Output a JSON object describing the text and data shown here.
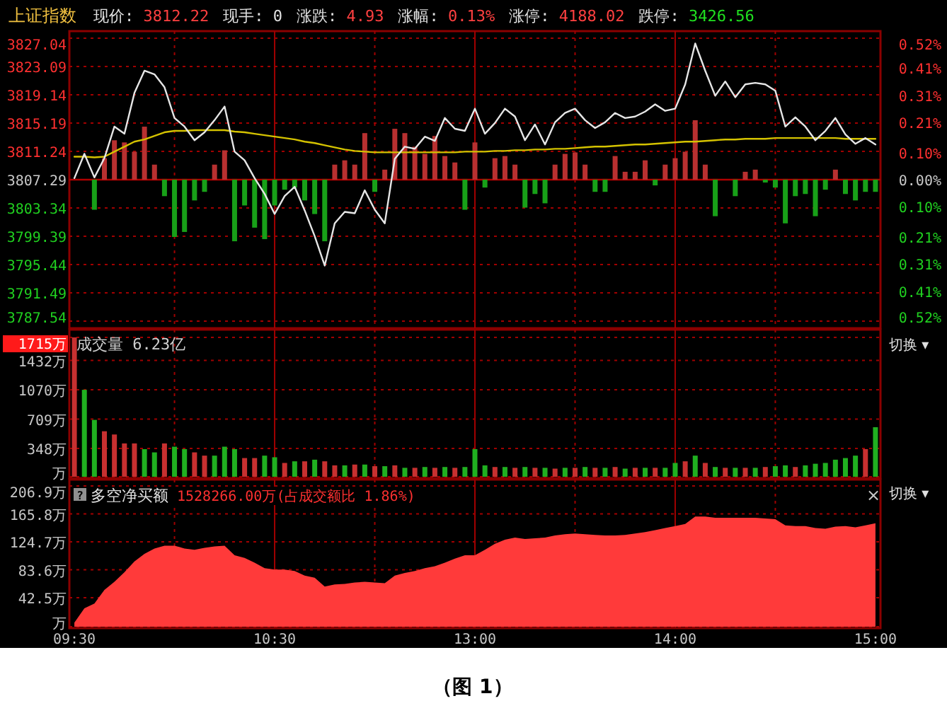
{
  "chart_data": [
    {
      "type": "line",
      "title": "上证指数",
      "annotations": [
        "现价: 3812.22",
        "现手: 0",
        "涨跌: 4.93",
        "涨幅: 0.13%",
        "涨停: 4188.02",
        "跌停: 3426.56"
      ],
      "categories": [
        null,
        null,
        null,
        null,
        null,
        null,
        null,
        null,
        null,
        null,
        null,
        null,
        null,
        null,
        null,
        null,
        null,
        null,
        null,
        null,
        null,
        null,
        null,
        null,
        null,
        null,
        null,
        null,
        null,
        null,
        null,
        null,
        null,
        null,
        null,
        null,
        null,
        null,
        null,
        null,
        null,
        null,
        null,
        null,
        null,
        null,
        null,
        null,
        null,
        null,
        null,
        null,
        null,
        null,
        null,
        null,
        null,
        null,
        null,
        null,
        null,
        null,
        null,
        null,
        null,
        null,
        null,
        null,
        null,
        null,
        null,
        null,
        null,
        null,
        null,
        null,
        null,
        null,
        null,
        null,
        null
      ],
      "ylim": [
        3787.54,
        3827.04
      ],
      "yticks": [
        3787.54,
        3791.49,
        3795.44,
        3799.39,
        3803.34,
        3807.29,
        3811.24,
        3815.19,
        3819.14,
        3823.09,
        3827.04
      ],
      "y2lim": [
        -0.52,
        0.52
      ],
      "y2ticks": [
        {
          "value": -0.52,
          "label": "0.52%"
        },
        {
          "value": -0.41,
          "label": "0.41%"
        },
        {
          "value": -0.31,
          "label": "0.31%"
        },
        {
          "value": -0.21,
          "label": "0.21%"
        },
        {
          "value": -0.1,
          "label": "0.10%"
        },
        {
          "value": 0,
          "label": "0.00%"
        },
        {
          "value": 0.1,
          "label": "0.10%"
        },
        {
          "value": 0.21,
          "label": "0.21%"
        },
        {
          "value": 0.31,
          "label": "0.31%"
        },
        {
          "value": 0.41,
          "label": "0.41%"
        },
        {
          "value": 0.52,
          "label": "0.52%"
        }
      ],
      "grid": true,
      "tick_labels": [
        "y",
        "y2"
      ],
      "ref_lines": [
        {
          "axis": "y",
          "value": 3807.29,
          "color": "#b00000"
        }
      ],
      "series": [
        {
          "type": "bar",
          "color": "#b83030",
          "base": [
            null,
            null,
            null,
            3807.29,
            3807.29,
            3807.29,
            3807.29,
            3807.29,
            3807.29,
            null,
            null,
            null,
            null,
            null,
            3807.29,
            3807.29,
            null,
            null,
            null,
            null,
            null,
            null,
            null,
            null,
            null,
            null,
            3807.29,
            3807.29,
            3807.29,
            3807.29,
            null,
            3807.29,
            3807.29,
            3807.29,
            3807.29,
            3807.29,
            3807.29,
            3807.29,
            3807.29,
            null,
            3807.29,
            null,
            3807.29,
            3807.29,
            3807.29,
            null,
            null,
            null,
            3807.29,
            3807.29,
            3807.29,
            3807.29,
            null,
            null,
            3807.29,
            3807.29,
            3807.29,
            3807.29,
            null,
            3807.29,
            3807.29,
            3807.29,
            3807.29,
            3807.29,
            null,
            null,
            null,
            3807.29,
            3807.29,
            null,
            null,
            null,
            null,
            null,
            null,
            null,
            3807.29,
            null,
            null,
            null,
            null
          ],
          "values": [
            null,
            null,
            null,
            3.0,
            5.5,
            5.2,
            3.9,
            7.4,
            2.1,
            null,
            null,
            null,
            null,
            null,
            2.1,
            4.1,
            null,
            null,
            null,
            null,
            null,
            null,
            null,
            null,
            null,
            null,
            2.1,
            2.7,
            2.1,
            6.5,
            null,
            1.4,
            7.1,
            6.5,
            4.6,
            3.6,
            6.1,
            3.3,
            2.4,
            null,
            5.2,
            null,
            3.0,
            3.3,
            2.1,
            null,
            null,
            null,
            2.1,
            3.6,
            3.8,
            2.1,
            null,
            null,
            3.3,
            1.1,
            1.1,
            2.7,
            null,
            2.1,
            3.0,
            3.9,
            8.3,
            2.1,
            null,
            null,
            null,
            1.1,
            1.4,
            null,
            null,
            null,
            null,
            null,
            null,
            null,
            1.4,
            null,
            null,
            null,
            null
          ]
        },
        {
          "type": "bar",
          "color": "#18a018",
          "base": [
            null,
            null,
            3807.29,
            null,
            null,
            null,
            null,
            null,
            null,
            3807.29,
            3807.29,
            3807.29,
            3807.29,
            3807.29,
            null,
            null,
            3807.29,
            3807.29,
            3807.29,
            3807.29,
            3807.29,
            3807.29,
            3807.29,
            3807.29,
            3807.29,
            3807.29,
            null,
            null,
            null,
            null,
            3807.29,
            null,
            null,
            null,
            null,
            null,
            null,
            null,
            null,
            3807.29,
            null,
            3807.29,
            null,
            null,
            null,
            3807.29,
            3807.29,
            3807.29,
            null,
            null,
            null,
            null,
            3807.29,
            3807.29,
            null,
            null,
            null,
            null,
            3807.29,
            null,
            null,
            null,
            null,
            null,
            3807.29,
            null,
            3807.29,
            null,
            null,
            3807.29,
            3807.29,
            3807.29,
            3807.29,
            3807.29,
            3807.29,
            3807.29,
            null,
            3807.29,
            3807.29,
            3807.29,
            3807.29
          ],
          "values": [
            null,
            null,
            -4.2,
            null,
            null,
            null,
            null,
            null,
            null,
            -2.3,
            -8.0,
            -7.3,
            -2.9,
            -1.7,
            null,
            null,
            -8.6,
            -3.6,
            -6.7,
            -8.3,
            -3.6,
            -1.4,
            -1.1,
            -2.9,
            -4.8,
            -8.6,
            null,
            null,
            null,
            null,
            -1.7,
            null,
            null,
            null,
            null,
            null,
            null,
            null,
            null,
            -4.2,
            null,
            -1.1,
            null,
            null,
            null,
            -3.9,
            -2.0,
            -3.3,
            null,
            null,
            null,
            null,
            -1.7,
            -1.7,
            null,
            null,
            null,
            null,
            -0.8,
            null,
            null,
            null,
            null,
            null,
            -5.1,
            null,
            -2.3,
            null,
            null,
            -0.4,
            -1.1,
            -6.1,
            -2.3,
            -2.0,
            -5.1,
            -1.4,
            null,
            -2.0,
            -2.9,
            -1.7,
            -1.7
          ]
        },
        {
          "color": "#d4c200",
          "values": [
            3810.5,
            3810.5,
            3810.4,
            3810.5,
            3811.2,
            3811.9,
            3812.6,
            3812.9,
            3813.4,
            3813.9,
            3814.1,
            3814.1,
            3814.2,
            3814.2,
            3814.2,
            3814.2,
            3814.0,
            3813.9,
            3813.7,
            3813.5,
            3813.3,
            3813.1,
            3812.9,
            3812.6,
            3812.4,
            3812.1,
            3811.8,
            3811.5,
            3811.3,
            3811.2,
            3811.1,
            3811.1,
            3811.1,
            3811.1,
            3811.1,
            3811.1,
            3811.1,
            3811.1,
            3811.1,
            3811.2,
            3811.2,
            3811.2,
            3811.3,
            3811.3,
            3811.4,
            3811.4,
            3811.5,
            3811.5,
            3811.6,
            3811.6,
            3811.7,
            3811.8,
            3811.9,
            3811.9,
            3812.0,
            3812.1,
            3812.2,
            3812.2,
            3812.3,
            3812.4,
            3812.5,
            3812.6,
            3812.6,
            3812.7,
            3812.8,
            3812.9,
            3812.9,
            3813.0,
            3813.0,
            3813.0,
            3813.1,
            3813.1,
            3813.1,
            3813.1,
            3813.1,
            3813.1,
            3813.1,
            3813.0,
            3813.0,
            3813.0,
            3813.0
          ]
        },
        {
          "color": "#e6e6e6",
          "values": [
            3807.5,
            3810.9,
            3807.6,
            3810.3,
            3814.7,
            3813.7,
            3819.4,
            3822.5,
            3822.0,
            3820.2,
            3815.9,
            3814.7,
            3812.8,
            3813.9,
            3815.6,
            3817.5,
            3811.2,
            3810.0,
            3807.5,
            3805.3,
            3802.5,
            3805.0,
            3806.3,
            3803.0,
            3799.4,
            3795.3,
            3801.2,
            3802.8,
            3802.6,
            3805.8,
            3803.1,
            3801.2,
            3810.2,
            3811.9,
            3811.6,
            3813.3,
            3812.7,
            3815.9,
            3814.4,
            3814.1,
            3817.2,
            3813.7,
            3815.2,
            3817.2,
            3816.1,
            3812.8,
            3815.0,
            3812.2,
            3815.3,
            3816.6,
            3817.2,
            3815.6,
            3814.5,
            3815.3,
            3816.6,
            3815.9,
            3816.1,
            3816.8,
            3817.8,
            3816.9,
            3817.2,
            3820.6,
            3826.3,
            3822.5,
            3819.0,
            3821.0,
            3818.8,
            3820.6,
            3820.8,
            3820.6,
            3819.7,
            3814.7,
            3816.0,
            3814.7,
            3812.8,
            3814.1,
            3815.9,
            3813.6,
            3812.3,
            3813.1,
            3812.2
          ]
        }
      ]
    },
    {
      "type": "bar",
      "annotations": [
        "成交量 6.23亿",
        "切换 ▾"
      ],
      "categories": [
        null,
        null,
        null,
        null,
        null,
        null,
        null,
        null,
        null,
        null,
        null,
        null,
        null,
        null,
        null,
        null,
        null,
        null,
        null,
        null,
        null,
        null,
        null,
        null,
        null,
        null,
        null,
        null,
        null,
        null,
        null,
        null,
        null,
        null,
        null,
        null,
        null,
        null,
        null,
        null,
        null,
        null,
        null,
        null,
        null,
        null,
        null,
        null,
        null,
        null,
        null,
        null,
        null,
        null,
        null,
        null,
        null,
        null,
        null,
        null,
        null,
        null,
        null,
        null,
        null,
        null,
        null,
        null,
        null,
        null,
        null,
        null,
        null,
        null,
        null,
        null,
        null,
        null,
        null,
        null,
        null
      ],
      "ylim": [
        0,
        1715
      ],
      "yticks": [
        {
          "value": 0,
          "label": "万"
        },
        {
          "value": 348,
          "label": "348万"
        },
        {
          "value": 709,
          "label": "709万"
        },
        {
          "value": 1070,
          "label": "1070万"
        },
        {
          "value": 1432,
          "label": "1432万"
        },
        {
          "value": 1715,
          "label": "1715万"
        }
      ],
      "grid": true,
      "tick_labels": "y",
      "values": [
        1715,
        1070,
        700,
        560,
        520,
        410,
        410,
        340,
        300,
        410,
        370,
        340,
        300,
        260,
        260,
        370,
        340,
        230,
        230,
        260,
        240,
        170,
        190,
        190,
        210,
        190,
        140,
        140,
        150,
        150,
        130,
        130,
        140,
        110,
        110,
        120,
        110,
        120,
        110,
        120,
        340,
        140,
        120,
        120,
        110,
        120,
        110,
        110,
        100,
        110,
        110,
        120,
        110,
        110,
        120,
        100,
        110,
        110,
        110,
        110,
        170,
        190,
        260,
        170,
        120,
        110,
        110,
        110,
        110,
        120,
        130,
        140,
        120,
        140,
        160,
        170,
        210,
        230,
        260,
        340,
        610
      ],
      "colors": [
        "#c83030",
        "#20b020",
        "#20b020",
        "#c83030",
        "#c83030",
        "#c83030",
        "#c83030",
        "#20b020",
        "#20b020",
        "#c83030",
        "#20b020",
        "#20b020",
        "#c83030",
        "#c83030",
        "#20b020",
        "#20b020",
        "#20b020",
        "#c83030",
        "#c83030",
        "#20b020",
        "#20b020",
        "#c83030",
        "#20b020",
        "#c83030",
        "#20b020",
        "#c83030",
        "#c83030",
        "#20b020",
        "#c83030",
        "#20b020",
        "#c83030",
        "#20b020",
        "#c83030",
        "#20b020",
        "#c83030",
        "#20b020",
        "#c83030",
        "#20b020",
        "#c83030",
        "#20b020",
        "#20b020",
        "#20b020",
        "#c83030",
        "#20b020",
        "#c83030",
        "#20b020",
        "#c83030",
        "#20b020",
        "#c83030",
        "#20b020",
        "#c83030",
        "#20b020",
        "#c83030",
        "#20b020",
        "#c83030",
        "#20b020",
        "#c83030",
        "#20b020",
        "#c83030",
        "#20b020",
        "#20b020",
        "#c83030",
        "#20b020",
        "#c83030",
        "#20b020",
        "#c83030",
        "#20b020",
        "#c83030",
        "#20b020",
        "#c83030",
        "#20b020",
        "#20b020",
        "#c83030",
        "#20b020",
        "#20b020",
        "#20b020",
        "#20b020",
        "#20b020",
        "#20b020",
        "#c83030",
        "#20b020"
      ]
    },
    {
      "type": "area",
      "title": "多空净买额",
      "subtitle": "1528266.00万(占成交额比 1.86%)",
      "annotations": [
        "?",
        "×",
        "切换 ▾",
        "（图 1）"
      ],
      "categories": [
        "09:30",
        null,
        null,
        null,
        null,
        null,
        null,
        null,
        null,
        null,
        null,
        null,
        null,
        null,
        null,
        null,
        null,
        null,
        null,
        null,
        "10:30",
        null,
        null,
        null,
        null,
        null,
        null,
        null,
        null,
        null,
        null,
        null,
        null,
        null,
        null,
        null,
        null,
        null,
        null,
        null,
        "13:00",
        null,
        null,
        null,
        null,
        null,
        null,
        null,
        null,
        null,
        null,
        null,
        null,
        null,
        null,
        null,
        null,
        null,
        null,
        null,
        "14:00",
        null,
        null,
        null,
        null,
        null,
        null,
        null,
        null,
        null,
        null,
        null,
        null,
        null,
        null,
        null,
        null,
        null,
        null,
        null,
        "15:00"
      ],
      "ylim": [
        0,
        206.9
      ],
      "yticks": [
        {
          "value": 0,
          "label": "万"
        },
        {
          "value": 42.5,
          "label": "42.5万"
        },
        {
          "value": 83.6,
          "label": "83.6万"
        },
        {
          "value": 124.7,
          "label": "124.7万"
        },
        {
          "value": 165.8,
          "label": "165.8万"
        },
        {
          "value": 206.9,
          "label": "206.9万"
        }
      ],
      "grid": true,
      "color": "#ff3a3a",
      "values": [
        6,
        27,
        34,
        54,
        66,
        80,
        96,
        107,
        115,
        119,
        119,
        115,
        113,
        116,
        118,
        119,
        105,
        101,
        94,
        86,
        84,
        84,
        82,
        75,
        72,
        59,
        62,
        63,
        65,
        66,
        65,
        64,
        75,
        79,
        82,
        86,
        89,
        94,
        100,
        105,
        105,
        113,
        122,
        128,
        131,
        129,
        130,
        131,
        134,
        136,
        137,
        136,
        135,
        134,
        134,
        135,
        137,
        139,
        142,
        145,
        148,
        151,
        162,
        162,
        160,
        160,
        160,
        160,
        160,
        159,
        158,
        149,
        148,
        148,
        145,
        144,
        147,
        148,
        146,
        149,
        152
      ]
    }
  ]
}
